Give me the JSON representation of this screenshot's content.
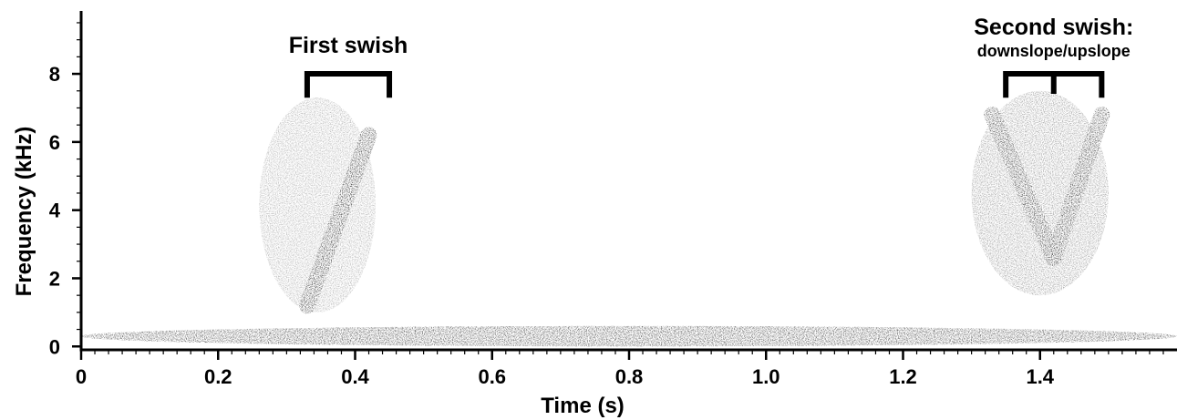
{
  "chart_data": {
    "type": "heatmap",
    "subtype": "spectrogram",
    "xlabel": "Time (s)",
    "ylabel": "Frequency (kHz)",
    "xlim": [
      0,
      1.6
    ],
    "ylim": [
      -0.1,
      9.9
    ],
    "x_ticks": [
      0,
      0.2,
      0.4,
      0.6,
      0.8,
      1.0,
      1.2,
      1.4
    ],
    "x_tick_labels": [
      "0",
      "0.2",
      "0.4",
      "0.6",
      "0.8",
      "1.0",
      "1.2",
      "1.4"
    ],
    "x_minor_tick_step": 0.02,
    "y_ticks": [
      0,
      2,
      4,
      6,
      8
    ],
    "y_tick_labels": [
      "0",
      "2",
      "4",
      "6",
      "8"
    ],
    "y_minor_tick_step": 0.5,
    "colormap": "white-to-black (darker = more energy)",
    "grid": false,
    "energy_features": [
      {
        "kind": "low-frequency band",
        "t_start": 0.0,
        "t_end": 1.6,
        "f_low": 0.0,
        "f_high": 0.6,
        "intensity": 0.8
      },
      {
        "kind": "first swish diffuse energy",
        "t_start": 0.26,
        "t_end": 0.43,
        "f_low": 1.0,
        "f_high": 7.3,
        "intensity": 0.35
      },
      {
        "kind": "first swish sweep",
        "t_start": 0.33,
        "t_end": 0.42,
        "f_start": 1.2,
        "f_end": 6.2,
        "intensity": 0.85
      },
      {
        "kind": "second swish diffuse energy",
        "t_start": 1.3,
        "t_end": 1.5,
        "f_low": 1.5,
        "f_high": 7.5,
        "intensity": 0.45
      },
      {
        "kind": "second swish downsweep",
        "t_start": 1.33,
        "t_end": 1.42,
        "f_start": 6.8,
        "f_end": 2.6,
        "intensity": 0.8
      },
      {
        "kind": "second swish upsweep",
        "t_start": 1.42,
        "t_end": 1.49,
        "f_start": 2.6,
        "f_end": 6.8,
        "intensity": 0.8
      }
    ],
    "annotations": [
      {
        "text": "First swish",
        "subtext": "",
        "bracket_t_start": 0.33,
        "bracket_t_end": 0.45,
        "bracket_dividers": []
      },
      {
        "text": "Second swish:",
        "subtext": "downslope/upslope",
        "bracket_t_start": 1.35,
        "bracket_t_end": 1.49,
        "bracket_dividers": [
          1.42
        ]
      }
    ]
  }
}
